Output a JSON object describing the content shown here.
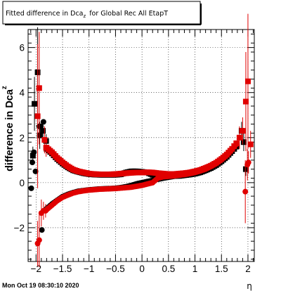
{
  "chart_data": {
    "type": "scatter",
    "title": "Fitted difference in Dca",
    "title_subscript": "z",
    "title_suffix": "for Global Rec All EtapT",
    "xlabel": "η",
    "ylabel_main": "difference in Dca",
    "ylabel_sub": "z",
    "timestamp": "Mon Oct 19 08:30:10 2020",
    "xlim": [
      -2.15,
      2.12
    ],
    "ylim": [
      -3.5,
      6.8
    ],
    "x_ticks": [
      -2,
      -1.5,
      -1,
      -0.5,
      0,
      0.5,
      1,
      1.5,
      2
    ],
    "x_tick_labels": [
      "−2",
      "−1.5",
      "−1",
      "−0.5",
      "0",
      "0.5",
      "1",
      "1.5",
      "2"
    ],
    "y_ticks": [
      -2,
      0,
      2,
      4,
      6
    ],
    "y_tick_labels": [
      "−2",
      "0",
      "2",
      "4",
      "6"
    ],
    "grid": true,
    "series": [
      {
        "marker": "circle",
        "color": "#000000",
        "x": [
          -2.09,
          -2.07,
          -2.04,
          -2.01,
          -1.94,
          -1.91,
          -1.89,
          -1.86
        ],
        "y": [
          -0.25,
          0.9,
          1.35,
          0.5,
          2.5,
          2.5,
          -2.1,
          2.7
        ]
      },
      {
        "marker": "square",
        "color": "#000000",
        "x": [
          -2.06,
          -2.03,
          -1.97,
          -1.93,
          -1.87,
          -1.81,
          1.88,
          1.92,
          1.96
        ],
        "y": [
          1.2,
          3.5,
          4.9,
          2.1,
          2.3,
          1.85,
          2.3,
          1.8,
          0.6
        ],
        "y_err": [
          0.4,
          1.2,
          2.0,
          0.6,
          0.4,
          0.3,
          0.4,
          0.4,
          0.3
        ]
      },
      {
        "marker": "square",
        "color": "#e00000",
        "x": [
          -1.97,
          -1.94,
          -1.84,
          -1.81,
          1.84,
          1.9,
          1.96,
          2.0,
          2.05
        ],
        "y": [
          2.95,
          4.2,
          1.9,
          1.55,
          2.0,
          2.3,
          3.6,
          4.5,
          1.7
        ],
        "y_err": [
          3.2,
          2.5,
          0.6,
          0.4,
          0.5,
          0.6,
          2.2,
          3.0,
          0.6
        ]
      },
      {
        "marker": "circle",
        "color": "#e00000",
        "x": [
          -1.97,
          -1.94,
          -1.9,
          -1.86,
          -1.82,
          1.95,
          1.99,
          2.01
        ],
        "y": [
          -2.7,
          -2.55,
          -1.35,
          -1.25,
          -1.25,
          -0.4,
          0.8,
          0.9
        ],
        "y_err": [
          1.0,
          1.2,
          0.6,
          0.4,
          0.3,
          1.4,
          0.7,
          0.5
        ]
      }
    ],
    "band_upper_black": [
      [
        -1.8,
        1.5
      ],
      [
        -1.7,
        1.3
      ],
      [
        -1.6,
        1.05
      ],
      [
        -1.5,
        0.85
      ],
      [
        -1.4,
        0.68
      ],
      [
        -1.3,
        0.55
      ],
      [
        -1.2,
        0.48
      ],
      [
        -1.1,
        0.42
      ],
      [
        -1.0,
        0.38
      ],
      [
        -0.9,
        0.36
      ],
      [
        -0.8,
        0.35
      ],
      [
        -0.7,
        0.35
      ],
      [
        -0.6,
        0.35
      ],
      [
        -0.5,
        0.35
      ],
      [
        -0.4,
        0.37
      ],
      [
        -0.3,
        0.45
      ],
      [
        -0.2,
        0.5
      ],
      [
        -0.1,
        0.5
      ],
      [
        0.0,
        0.48
      ],
      [
        0.1,
        0.45
      ],
      [
        0.2,
        0.35
      ],
      [
        0.3,
        0.28
      ],
      [
        0.4,
        0.28
      ],
      [
        0.5,
        0.28
      ],
      [
        0.6,
        0.3
      ],
      [
        0.7,
        0.3
      ],
      [
        0.8,
        0.33
      ],
      [
        0.9,
        0.36
      ],
      [
        1.0,
        0.4
      ],
      [
        1.1,
        0.46
      ],
      [
        1.2,
        0.55
      ],
      [
        1.3,
        0.65
      ],
      [
        1.4,
        0.78
      ],
      [
        1.5,
        0.95
      ],
      [
        1.6,
        1.15
      ],
      [
        1.7,
        1.4
      ],
      [
        1.78,
        1.6
      ]
    ],
    "band_lower_black": [
      [
        -1.8,
        -1.15
      ],
      [
        -1.7,
        -0.95
      ],
      [
        -1.6,
        -0.78
      ],
      [
        -1.5,
        -0.62
      ],
      [
        -1.4,
        -0.52
      ],
      [
        -1.3,
        -0.44
      ],
      [
        -1.2,
        -0.38
      ],
      [
        -1.1,
        -0.35
      ],
      [
        -1.0,
        -0.32
      ],
      [
        -0.9,
        -0.3
      ],
      [
        -0.8,
        -0.28
      ],
      [
        -0.7,
        -0.27
      ],
      [
        -0.6,
        -0.26
      ],
      [
        -0.5,
        -0.25
      ],
      [
        -0.4,
        -0.22
      ],
      [
        -0.3,
        -0.18
      ],
      [
        -0.2,
        -0.12
      ],
      [
        -0.1,
        -0.05
      ],
      [
        0.0,
        0.0
      ],
      [
        0.1,
        0.05
      ],
      [
        0.2,
        0.1
      ],
      [
        0.3,
        0.15
      ],
      [
        0.4,
        0.2
      ],
      [
        0.5,
        0.24
      ],
      [
        0.6,
        0.28
      ],
      [
        0.7,
        0.32
      ],
      [
        0.8,
        0.36
      ],
      [
        0.9,
        0.4
      ],
      [
        1.0,
        0.45
      ],
      [
        1.1,
        0.52
      ],
      [
        1.2,
        0.6
      ],
      [
        1.3,
        0.72
      ],
      [
        1.4,
        0.85
      ],
      [
        1.5,
        1.0
      ],
      [
        1.6,
        1.2
      ],
      [
        1.7,
        1.45
      ],
      [
        1.78,
        1.6
      ]
    ],
    "band_upper_red": [
      [
        -1.8,
        1.55
      ],
      [
        -1.7,
        1.35
      ],
      [
        -1.6,
        1.1
      ],
      [
        -1.5,
        0.9
      ],
      [
        -1.4,
        0.72
      ],
      [
        -1.3,
        0.58
      ],
      [
        -1.2,
        0.5
      ],
      [
        -1.1,
        0.45
      ],
      [
        -1.0,
        0.4
      ],
      [
        -0.9,
        0.38
      ],
      [
        -0.8,
        0.37
      ],
      [
        -0.7,
        0.37
      ],
      [
        -0.6,
        0.37
      ],
      [
        -0.5,
        0.38
      ],
      [
        -0.4,
        0.4
      ],
      [
        -0.3,
        0.42
      ],
      [
        -0.2,
        0.44
      ],
      [
        -0.1,
        0.45
      ],
      [
        0.0,
        0.45
      ],
      [
        0.1,
        0.46
      ],
      [
        0.2,
        0.45
      ],
      [
        0.3,
        0.42
      ],
      [
        0.4,
        0.4
      ],
      [
        0.5,
        0.38
      ],
      [
        0.6,
        0.38
      ],
      [
        0.7,
        0.4
      ],
      [
        0.8,
        0.42
      ],
      [
        0.9,
        0.45
      ],
      [
        1.0,
        0.5
      ],
      [
        1.1,
        0.56
      ],
      [
        1.2,
        0.65
      ],
      [
        1.3,
        0.75
      ],
      [
        1.4,
        0.88
      ],
      [
        1.5,
        1.05
      ],
      [
        1.6,
        1.25
      ],
      [
        1.7,
        1.5
      ],
      [
        1.78,
        1.75
      ]
    ],
    "band_lower_red": [
      [
        -1.8,
        -1.2
      ],
      [
        -1.7,
        -1.0
      ],
      [
        -1.6,
        -0.8
      ],
      [
        -1.5,
        -0.65
      ],
      [
        -1.4,
        -0.55
      ],
      [
        -1.3,
        -0.46
      ],
      [
        -1.2,
        -0.4
      ],
      [
        -1.1,
        -0.36
      ],
      [
        -1.0,
        -0.33
      ],
      [
        -0.9,
        -0.31
      ],
      [
        -0.8,
        -0.29
      ],
      [
        -0.7,
        -0.28
      ],
      [
        -0.6,
        -0.27
      ],
      [
        -0.5,
        -0.26
      ],
      [
        -0.4,
        -0.24
      ],
      [
        -0.3,
        -0.22
      ],
      [
        -0.2,
        -0.2
      ],
      [
        -0.1,
        -0.16
      ],
      [
        0.0,
        -0.12
      ],
      [
        0.1,
        -0.06
      ],
      [
        0.2,
        0.0
      ],
      [
        0.3,
        0.2
      ],
      [
        0.4,
        0.26
      ],
      [
        0.5,
        0.28
      ],
      [
        0.6,
        0.3
      ],
      [
        0.7,
        0.33
      ],
      [
        0.8,
        0.36
      ],
      [
        0.9,
        0.4
      ],
      [
        1.0,
        0.45
      ],
      [
        1.1,
        0.52
      ],
      [
        1.2,
        0.6
      ],
      [
        1.3,
        0.72
      ],
      [
        1.4,
        0.86
      ],
      [
        1.5,
        1.02
      ],
      [
        1.6,
        1.22
      ],
      [
        1.7,
        1.48
      ],
      [
        1.78,
        1.7
      ]
    ]
  }
}
